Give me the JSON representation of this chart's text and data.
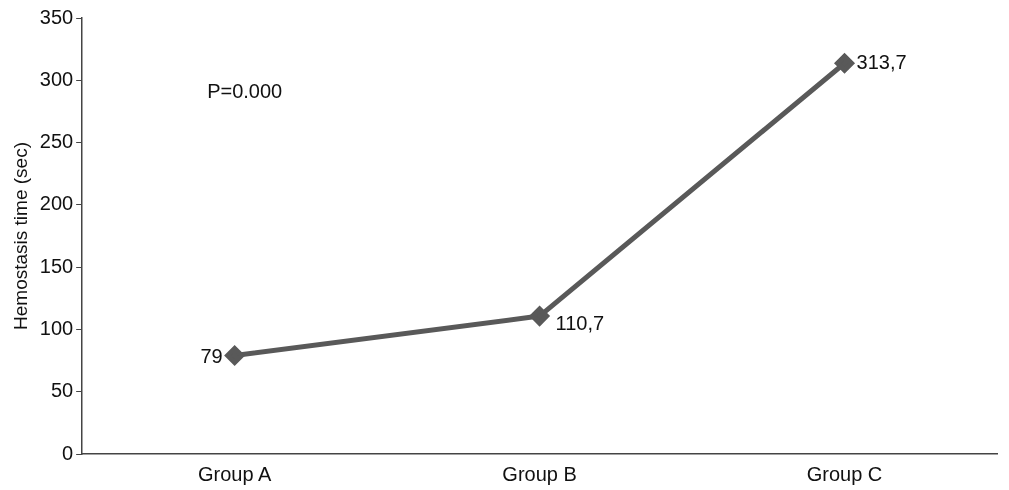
{
  "chart_data": {
    "type": "line",
    "ylabel": "Hemostasis time (sec)",
    "categories": [
      "Group A",
      "Group B",
      "Group C"
    ],
    "series": [
      {
        "color": "#595959",
        "values": [
          79,
          110.7,
          313.7
        ],
        "value_labels": [
          "79",
          "110,7",
          "313,7"
        ]
      }
    ],
    "ylim": [
      0,
      350
    ],
    "yticks": [
      0,
      50,
      100,
      150,
      200,
      250,
      300,
      350
    ],
    "grid": false,
    "legend": false,
    "marker": "diamond",
    "line_style": "solid",
    "annotations": [
      "P=0.000"
    ]
  }
}
